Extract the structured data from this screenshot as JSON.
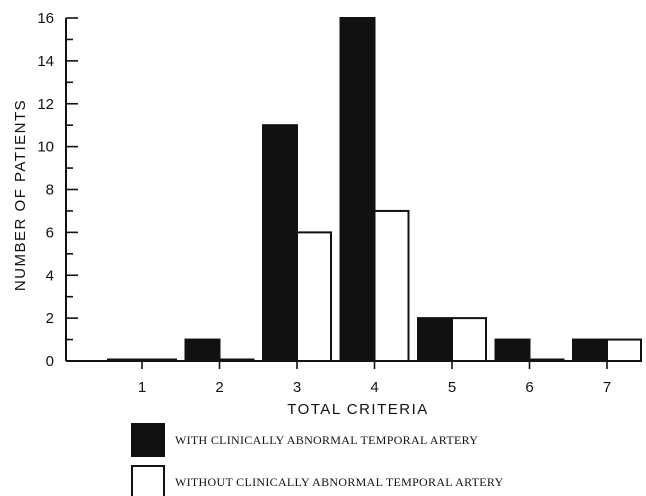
{
  "chart_data": {
    "type": "bar",
    "xlabel": "TOTAL CRITERIA",
    "ylabel": "NUMBER OF PATIENTS",
    "categories": [
      "1",
      "2",
      "3",
      "4",
      "5",
      "6",
      "7"
    ],
    "ylim": [
      0,
      16
    ],
    "yticks": [
      0,
      2,
      4,
      6,
      8,
      10,
      12,
      14,
      16
    ],
    "series": [
      {
        "name": "WITH CLINICALLY ABNORMAL TEMPORAL ARTERY",
        "fill": "#111111",
        "values": [
          0,
          1,
          11,
          16,
          2,
          1,
          1
        ]
      },
      {
        "name": "WITHOUT CLINICALLY ABNORMAL TEMPORAL ARTERY",
        "fill": "#ffffff",
        "values": [
          0,
          0,
          6,
          7,
          2,
          0,
          1
        ]
      }
    ],
    "grid": false,
    "legend": "bottom"
  }
}
